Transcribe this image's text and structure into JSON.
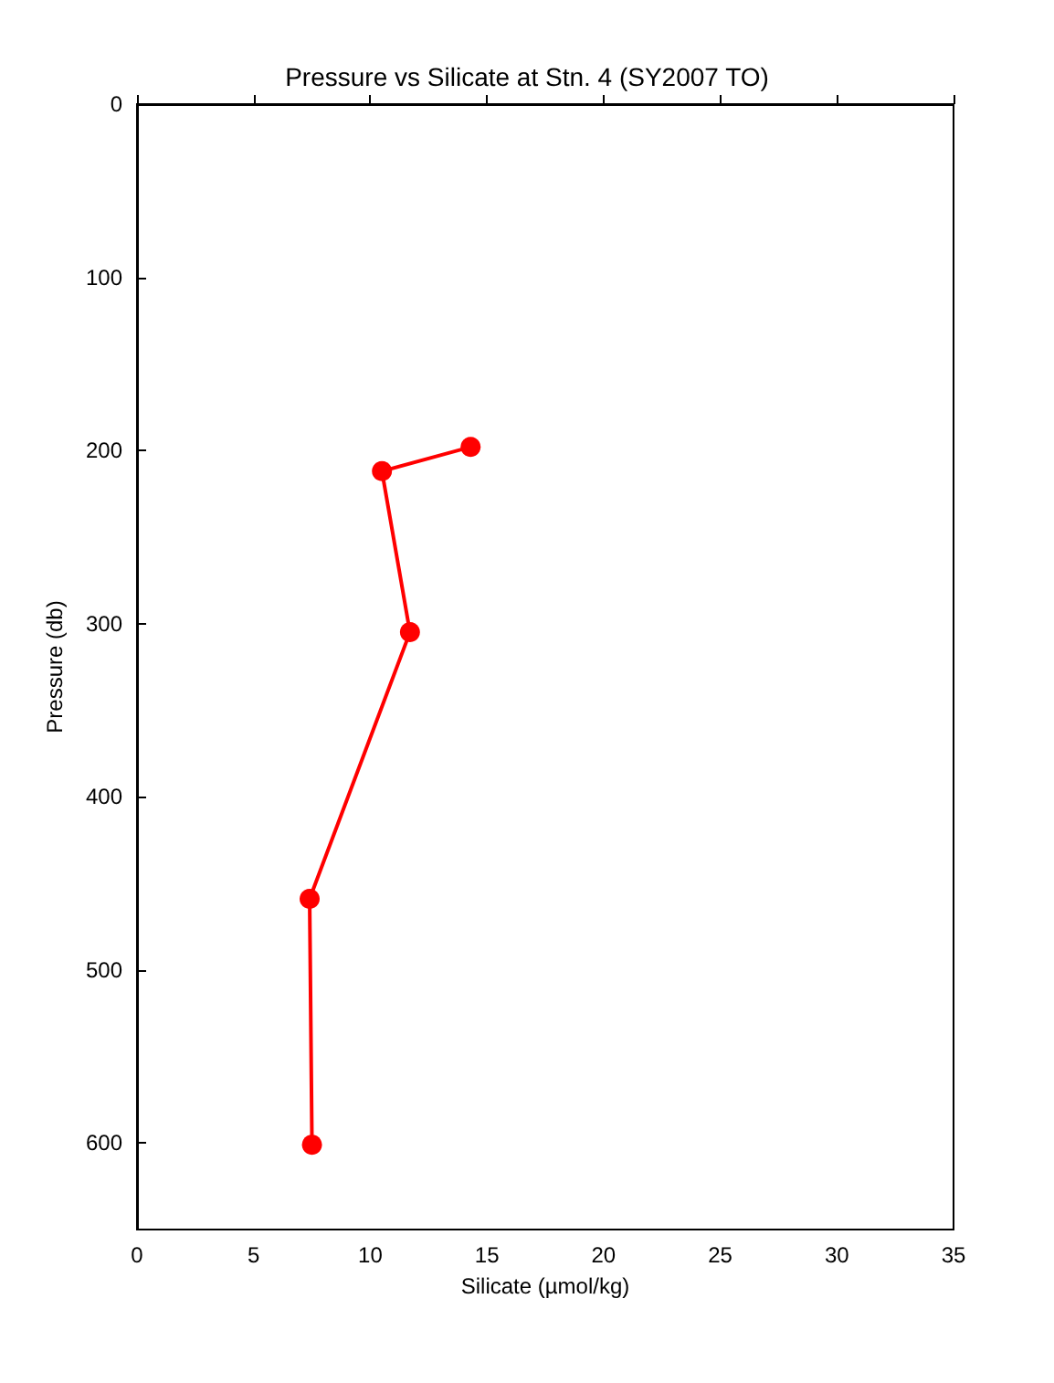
{
  "chart_data": {
    "type": "line",
    "title": "Pressure vs Silicate at Stn. 4 (SY2007 TO)",
    "xlabel": "Silicate (µmol/kg)",
    "ylabel": "Pressure (db)",
    "x": [
      14.3,
      10.5,
      11.7,
      7.4,
      7.5
    ],
    "series": [
      {
        "color": "#ff0000",
        "values": [
          198,
          212,
          305,
          459,
          601
        ]
      }
    ],
    "xlim": [
      0,
      35
    ],
    "xticks": [
      0,
      5,
      10,
      15,
      20,
      25,
      30,
      35
    ],
    "ylim": [
      650,
      0
    ],
    "yticks": [
      0,
      100,
      200,
      300,
      400,
      500,
      600
    ],
    "marker": "circle",
    "line_style": "solid"
  }
}
